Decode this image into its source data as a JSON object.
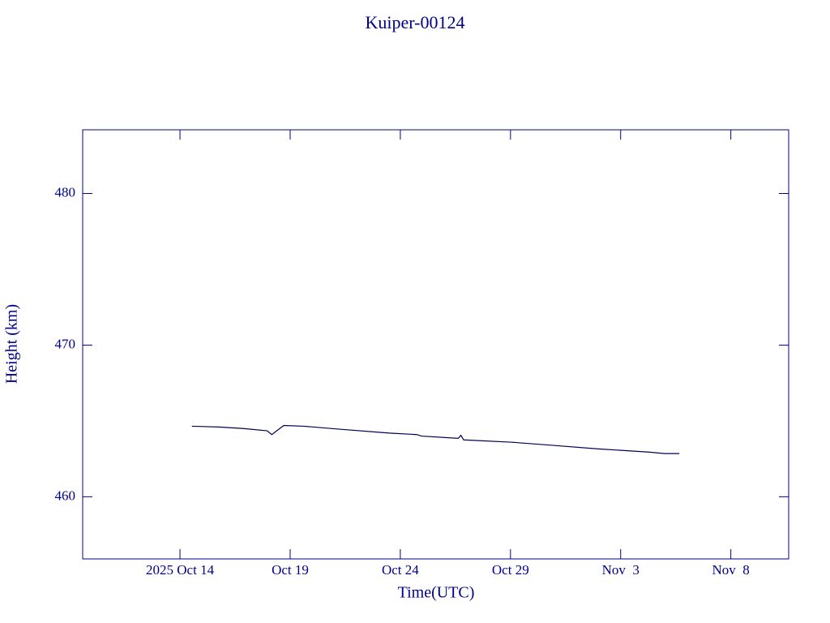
{
  "chart_data": {
    "type": "line",
    "title": "Kuiper-00124",
    "x_label": "Time(UTC)",
    "y_label": "Height (km)",
    "x": [
      "2025-10-14T13:00",
      "2025-10-15T18:00",
      "2025-10-16T21:00",
      "2025-10-17T23:00",
      "2025-10-18T04:00",
      "2025-10-18T17:00",
      "2025-10-19T15:00",
      "2025-10-21T07:00",
      "2025-10-23T12:00",
      "2025-10-24T18:00",
      "2025-10-24T23:00",
      "2025-10-26T15:00",
      "2025-10-26T18:00",
      "2025-10-26T21:00",
      "2025-10-29T00:00",
      "2025-10-30T20:00",
      "2025-11-02T01:00",
      "2025-11-04T06:00",
      "2025-11-05T00:00",
      "2025-11-05T16:00"
    ],
    "series": [
      {
        "color": "#000050",
        "values": [
          464.65,
          464.6,
          464.5,
          464.35,
          464.1,
          464.7,
          464.65,
          464.45,
          464.2,
          464.1,
          464.0,
          463.85,
          464.05,
          463.75,
          463.6,
          463.4,
          463.15,
          462.95,
          462.85,
          462.85
        ]
      }
    ],
    "xlim": [
      "2025-10-09T14:00",
      "2025-11-10T15:00"
    ],
    "xticks": [
      {
        "value": "2025-10-14",
        "label": "2025 Oct 14"
      },
      {
        "value": "2025-10-19",
        "label": "Oct 19"
      },
      {
        "value": "2025-10-24",
        "label": "Oct 24"
      },
      {
        "value": "2025-10-29",
        "label": "Oct 29"
      },
      {
        "value": "2025-11-03",
        "label": "Nov  3"
      },
      {
        "value": "2025-11-08",
        "label": "Nov  8"
      }
    ],
    "ylim": [
      455.9,
      484.2
    ],
    "yticks": [
      460,
      470,
      480
    ],
    "axis_color": "#00008b"
  }
}
